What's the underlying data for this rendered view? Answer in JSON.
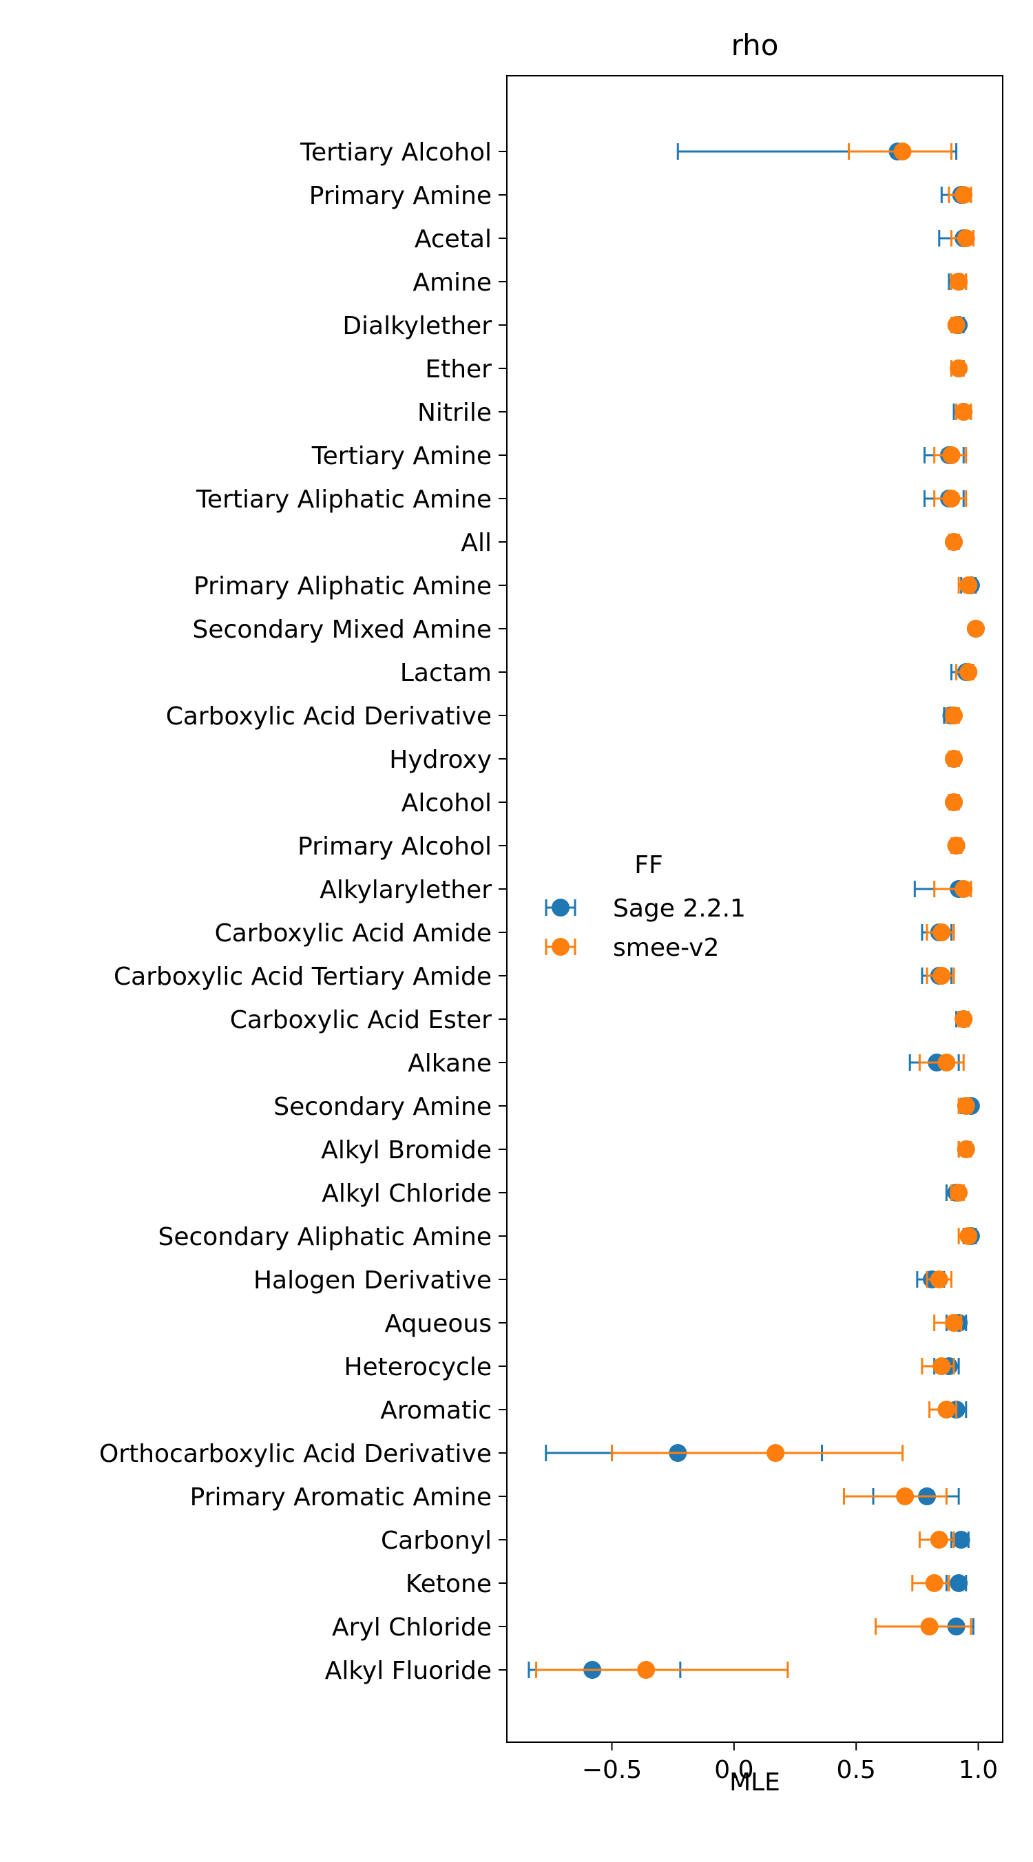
{
  "chart_data": {
    "type": "scatter",
    "title": "rho",
    "xlabel": "MLE",
    "ylabel": "",
    "xlim": [
      -0.93,
      1.1
    ],
    "xticks": [
      -0.5,
      0.0,
      0.5,
      1.0
    ],
    "xtick_labels": [
      "−0.5",
      "0.0",
      "0.5",
      "1.0"
    ],
    "grid": false,
    "categories": [
      "Tertiary Alcohol",
      "Primary Amine",
      "Acetal",
      "Amine",
      "Dialkylether",
      "Ether",
      "Nitrile",
      "Tertiary Amine",
      "Tertiary Aliphatic Amine",
      "All",
      "Primary Aliphatic Amine",
      "Secondary Mixed Amine",
      "Lactam",
      "Carboxylic Acid Derivative",
      "Hydroxy",
      "Alcohol",
      "Primary Alcohol",
      "Alkylarylether",
      "Carboxylic Acid Amide",
      "Carboxylic Acid Tertiary Amide",
      "Carboxylic Acid Ester",
      "Alkane",
      "Secondary Amine",
      "Alkyl Bromide",
      "Alkyl Chloride",
      "Secondary Aliphatic Amine",
      "Halogen Derivative",
      "Aqueous",
      "Heterocycle",
      "Aromatic",
      "Orthocarboxylic Acid Derivative",
      "Primary Aromatic Amine",
      "Carbonyl",
      "Ketone",
      "Aryl Chloride",
      "Alkyl Fluoride"
    ],
    "legend": {
      "title": "FF",
      "placement": "center-left"
    },
    "series": [
      {
        "name": "Sage 2.2.1",
        "color": "#1f77b4",
        "values": [
          0.67,
          0.93,
          0.94,
          0.92,
          0.92,
          0.92,
          0.94,
          0.88,
          0.88,
          0.9,
          0.97,
          0.99,
          0.95,
          0.89,
          0.9,
          0.9,
          0.91,
          0.92,
          0.84,
          0.84,
          0.94,
          0.83,
          0.97,
          0.95,
          0.91,
          0.97,
          0.81,
          0.92,
          0.88,
          0.91,
          -0.23,
          0.79,
          0.93,
          0.92,
          0.91,
          -0.58
        ],
        "lower": [
          -0.23,
          0.85,
          0.84,
          0.88,
          0.89,
          0.89,
          0.9,
          0.78,
          0.78,
          0.88,
          0.93,
          0.98,
          0.89,
          0.86,
          0.88,
          0.88,
          0.89,
          0.74,
          0.77,
          0.77,
          0.91,
          0.72,
          0.93,
          0.92,
          0.87,
          0.94,
          0.75,
          0.87,
          0.82,
          0.86,
          -0.77,
          0.57,
          0.89,
          0.87,
          0.79,
          -0.84
        ],
        "upper": [
          0.91,
          0.97,
          0.98,
          0.95,
          0.94,
          0.94,
          0.97,
          0.94,
          0.94,
          0.92,
          0.99,
          1.0,
          0.98,
          0.92,
          0.92,
          0.92,
          0.93,
          0.97,
          0.89,
          0.89,
          0.96,
          0.92,
          0.98,
          0.97,
          0.94,
          0.99,
          0.86,
          0.95,
          0.92,
          0.95,
          0.36,
          0.92,
          0.96,
          0.95,
          0.98,
          -0.22
        ]
      },
      {
        "name": "smee-v2",
        "color": "#ff7f0e",
        "values": [
          0.69,
          0.94,
          0.95,
          0.92,
          0.91,
          0.92,
          0.94,
          0.89,
          0.89,
          0.9,
          0.96,
          0.99,
          0.96,
          0.9,
          0.9,
          0.9,
          0.91,
          0.94,
          0.85,
          0.85,
          0.94,
          0.87,
          0.95,
          0.95,
          0.92,
          0.96,
          0.84,
          0.9,
          0.85,
          0.87,
          0.17,
          0.7,
          0.84,
          0.82,
          0.8,
          -0.36
        ],
        "lower": [
          0.47,
          0.88,
          0.89,
          0.89,
          0.89,
          0.89,
          0.91,
          0.82,
          0.82,
          0.88,
          0.92,
          0.98,
          0.91,
          0.87,
          0.88,
          0.88,
          0.89,
          0.82,
          0.79,
          0.79,
          0.92,
          0.76,
          0.92,
          0.92,
          0.89,
          0.92,
          0.79,
          0.82,
          0.77,
          0.8,
          -0.5,
          0.45,
          0.76,
          0.73,
          0.58,
          -0.81
        ],
        "upper": [
          0.89,
          0.97,
          0.98,
          0.95,
          0.93,
          0.94,
          0.97,
          0.95,
          0.95,
          0.92,
          0.98,
          1.0,
          0.98,
          0.92,
          0.92,
          0.92,
          0.93,
          0.97,
          0.9,
          0.9,
          0.96,
          0.94,
          0.97,
          0.97,
          0.94,
          0.97,
          0.89,
          0.93,
          0.9,
          0.91,
          0.69,
          0.87,
          0.9,
          0.88,
          0.97,
          0.22
        ]
      }
    ]
  }
}
